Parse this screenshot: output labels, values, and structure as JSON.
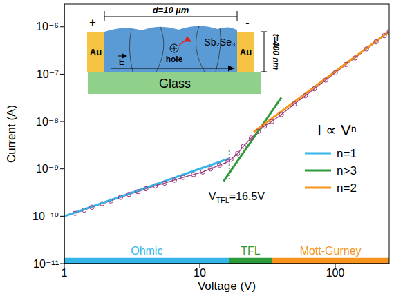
{
  "chart_data": {
    "type": "line",
    "log": true,
    "x_label": "Voltage (V)",
    "y_label": "Current (A)",
    "xlim": [
      1,
      250
    ],
    "xticks": [
      1,
      10,
      100
    ],
    "ylim": [
      1e-11,
      3e-06
    ],
    "yticks": [
      {
        "value": 1e-11,
        "label": "10⁻¹¹"
      },
      {
        "value": 1e-10,
        "label": "10⁻¹⁰"
      },
      {
        "value": 1e-09,
        "label": "10⁻⁹"
      },
      {
        "value": 1e-08,
        "label": "10⁻⁸"
      },
      {
        "value": 1e-07,
        "label": "10⁻⁷"
      },
      {
        "value": 1e-06,
        "label": "10⁻⁶"
      }
    ],
    "grid": false,
    "legend": "right",
    "legend_title": "I ∝ Vⁿ",
    "series": [
      {
        "color": "#9b3a7d",
        "marker": "circle",
        "line_style": "solid",
        "x": [
          1.2,
          1.4,
          1.6,
          1.9,
          2.2,
          2.6,
          3.0,
          3.5,
          4.0,
          4.7,
          5.5,
          6.5,
          7.5,
          9.0,
          10.5,
          12,
          14,
          16,
          17,
          19,
          21,
          24,
          27,
          30,
          34,
          40,
          50,
          60,
          70,
          85,
          100,
          120,
          140,
          170,
          200,
          230,
          250
        ],
        "values": [
          1.15e-10,
          1.35e-10,
          1.55e-10,
          1.85e-10,
          2.1e-10,
          2.5e-10,
          2.9e-10,
          3.3e-10,
          3.8e-10,
          4.4e-10,
          5e-10,
          5.8e-10,
          6.6e-10,
          7.6e-10,
          8.6e-10,
          1e-09,
          1.2e-09,
          1.4e-09,
          1.6e-09,
          2.1e-09,
          3e-09,
          4.5e-09,
          6.2e-09,
          8e-09,
          1e-08,
          1.4e-08,
          2.35e-08,
          3.5e-08,
          4.9e-08,
          7.5e-08,
          1.07e-07,
          1.6e-07,
          2.2e-07,
          3.4e-07,
          4.8e-07,
          6.5e-07,
          7.8e-07
        ]
      },
      {
        "name": "n=1",
        "color": "#35b6e8",
        "marker": "none",
        "line_style": "solid",
        "x": [
          1,
          16.5
        ],
        "values": [
          1e-10,
          1.65e-09
        ]
      },
      {
        "name": "n>3",
        "color": "#2e9b3a",
        "marker": "none",
        "line_style": "solid",
        "x": [
          15,
          40
        ],
        "values": [
          5.5e-10,
          3.2e-08
        ]
      },
      {
        "name": "n=2",
        "color": "#f7941d",
        "marker": "none",
        "line_style": "solid",
        "x": [
          25,
          250
        ],
        "values": [
          6e-09,
          8e-07
        ]
      }
    ],
    "regions": [
      {
        "label": "Ohmic",
        "x": [
          1,
          16.5
        ],
        "color": "#35b6e8"
      },
      {
        "label": "TFL",
        "x": [
          16.5,
          34
        ],
        "color": "#2e9b3a"
      },
      {
        "label": "Mott-Gurney",
        "x": [
          34,
          250
        ],
        "color": "#f7941d"
      }
    ],
    "annotations": [
      {
        "text": "V",
        "subscript": "TFL",
        "suffix": "=16.5V",
        "x": 16.5,
        "y": [
          6e-10,
          2.5e-09
        ],
        "line_style": "dotted"
      }
    ],
    "inset": {
      "plus": "+",
      "minus": "-",
      "width_label": "d=10 µm",
      "thickness_label": "t=400 nm",
      "electrode_labels": [
        "Au",
        "Au"
      ],
      "film_label": "Sb₂Se₃",
      "substrate_label": "Glass",
      "carrier_label": "hole",
      "field_label": "E"
    }
  }
}
